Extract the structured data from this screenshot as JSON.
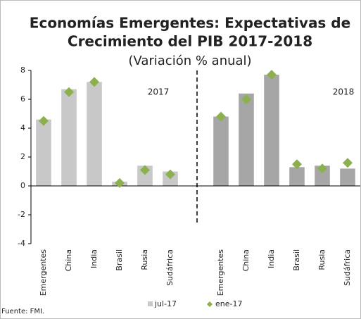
{
  "chart_data": {
    "type": "bar",
    "title": [
      "Economías Emergentes: Expectativas de",
      "Crecimiento del PIB 2017-2018"
    ],
    "subtitle": "(Variación % anual)",
    "annotations": [
      "2017",
      "2018"
    ],
    "source": "Fuente: FMI.",
    "categories": [
      "Emergentes",
      "China",
      "India",
      "Brasil",
      "Rusia",
      "Sudáfrica",
      null,
      "Emergentes",
      "China",
      "India",
      "Brasil",
      "Rusia",
      "Sudáfrica"
    ],
    "series": [
      {
        "name": "jul-17",
        "type": "bar",
        "color": "#c8c8c8",
        "colors": [
          "#c8c8c8",
          "#c8c8c8",
          "#c8c8c8",
          "#c8c8c8",
          "#c8c8c8",
          "#c8c8c8",
          null,
          "#a6a6a6",
          "#a6a6a6",
          "#a6a6a6",
          "#a6a6a6",
          "#a6a6a6",
          "#a6a6a6"
        ],
        "values": [
          4.6,
          6.7,
          7.2,
          0.3,
          1.4,
          1.0,
          null,
          4.8,
          6.4,
          7.7,
          1.3,
          1.4,
          1.2
        ]
      },
      {
        "name": "ene-17",
        "type": "marker",
        "color": "#8db04f",
        "values": [
          4.5,
          6.5,
          7.2,
          0.2,
          1.1,
          0.8,
          null,
          4.8,
          6.0,
          7.7,
          1.5,
          1.2,
          1.6
        ]
      }
    ],
    "ylim": [
      -4,
      8
    ],
    "yticks": [
      -4,
      -2,
      0,
      2,
      4,
      6,
      8
    ]
  }
}
